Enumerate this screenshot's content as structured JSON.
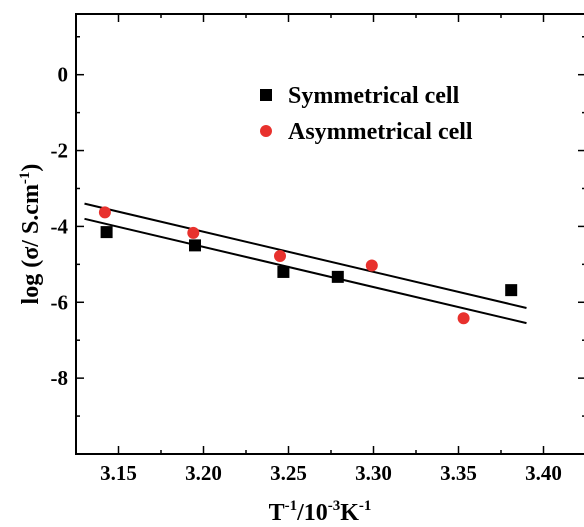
{
  "chart_data": {
    "type": "scatter",
    "xlabel": {
      "base": "T",
      "sup1": "-1",
      "mid": "/10",
      "sup2": "-3",
      "unit": "K",
      "sup3": "-1"
    },
    "ylabel": {
      "main": "log (σ/ S.cm",
      "sup": "-1",
      "end": ")"
    },
    "xlim": [
      3.125,
      3.425
    ],
    "ylim": [
      -10.0,
      1.6
    ],
    "xticks": [
      3.15,
      3.2,
      3.25,
      3.3,
      3.35,
      3.4
    ],
    "xtick_labels": [
      "3.15",
      "3.20",
      "3.25",
      "3.30",
      "3.35",
      "3.40"
    ],
    "yticks": [
      0,
      -2,
      -4,
      -6,
      -8
    ],
    "ytick_labels": [
      "0",
      "-2",
      "-4",
      "-6",
      "-8"
    ],
    "legend_position": "top-center",
    "series": [
      {
        "name": "Symmetrical cell",
        "marker": "square",
        "color": "#000000",
        "x": [
          3.143,
          3.195,
          3.247,
          3.279,
          3.381
        ],
        "y": [
          -4.15,
          -4.5,
          -5.2,
          -5.33,
          -5.68
        ],
        "fit": {
          "x": [
            3.13,
            3.39
          ],
          "y": [
            -3.8,
            -6.55
          ]
        }
      },
      {
        "name": "Asymmetrical cell",
        "marker": "circle",
        "color": "#e8312d",
        "x": [
          3.142,
          3.194,
          3.245,
          3.299,
          3.353
        ],
        "y": [
          -3.63,
          -4.17,
          -4.78,
          -5.03,
          -6.42
        ],
        "fit": {
          "x": [
            3.13,
            3.39
          ],
          "y": [
            -3.4,
            -6.15
          ]
        }
      }
    ]
  }
}
